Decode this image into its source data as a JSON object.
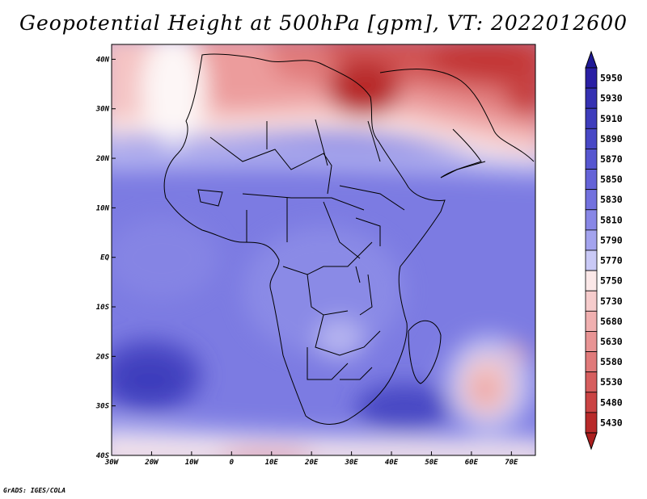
{
  "title": "Geopotential Height at 500hPa [gpm], VT: 2022012600",
  "credit": "GrADS: IGES/COLA",
  "map": {
    "projection": "lat-lon",
    "region": "Africa"
  },
  "x_axis": {
    "ticks": [
      {
        "value": -30,
        "label": "30W"
      },
      {
        "value": -20,
        "label": "20W"
      },
      {
        "value": -10,
        "label": "10W"
      },
      {
        "value": 0,
        "label": "0"
      },
      {
        "value": 10,
        "label": "10E"
      },
      {
        "value": 20,
        "label": "20E"
      },
      {
        "value": 30,
        "label": "30E"
      },
      {
        "value": 40,
        "label": "40E"
      },
      {
        "value": 50,
        "label": "50E"
      },
      {
        "value": 60,
        "label": "60E"
      },
      {
        "value": 70,
        "label": "70E"
      }
    ]
  },
  "y_axis": {
    "ticks": [
      {
        "value": 40,
        "label": "40N"
      },
      {
        "value": 30,
        "label": "30N"
      },
      {
        "value": 20,
        "label": "20N"
      },
      {
        "value": 10,
        "label": "10N"
      },
      {
        "value": 0,
        "label": "EQ"
      },
      {
        "value": -10,
        "label": "10S"
      },
      {
        "value": -20,
        "label": "20S"
      },
      {
        "value": -30,
        "label": "30S"
      },
      {
        "value": -40,
        "label": "40S"
      }
    ]
  },
  "colorbar": {
    "levels": [
      {
        "label": "5950",
        "color": "#2a1fa4"
      },
      {
        "label": "5930",
        "color": "#3531b2"
      },
      {
        "label": "5910",
        "color": "#3e3dbc"
      },
      {
        "label": "5890",
        "color": "#4848c6"
      },
      {
        "label": "5870",
        "color": "#5656d0"
      },
      {
        "label": "5850",
        "color": "#6463d8"
      },
      {
        "label": "5830",
        "color": "#7271de"
      },
      {
        "label": "5810",
        "color": "#8887e6"
      },
      {
        "label": "5790",
        "color": "#a3a3ee"
      },
      {
        "label": "5770",
        "color": "#c9c9f6"
      },
      {
        "label": "5750",
        "color": "#fbe8e8"
      },
      {
        "label": "5730",
        "color": "#f6cccc"
      },
      {
        "label": "5680",
        "color": "#f0b0b0"
      },
      {
        "label": "5630",
        "color": "#e89494"
      },
      {
        "label": "5580",
        "color": "#e07a7a"
      },
      {
        "label": "5530",
        "color": "#d65e5e"
      },
      {
        "label": "5480",
        "color": "#ca4444"
      },
      {
        "label": "5430",
        "color": "#b82a2a"
      }
    ],
    "top_color": "#201a96",
    "bottom_color": "#ab1e1e"
  }
}
